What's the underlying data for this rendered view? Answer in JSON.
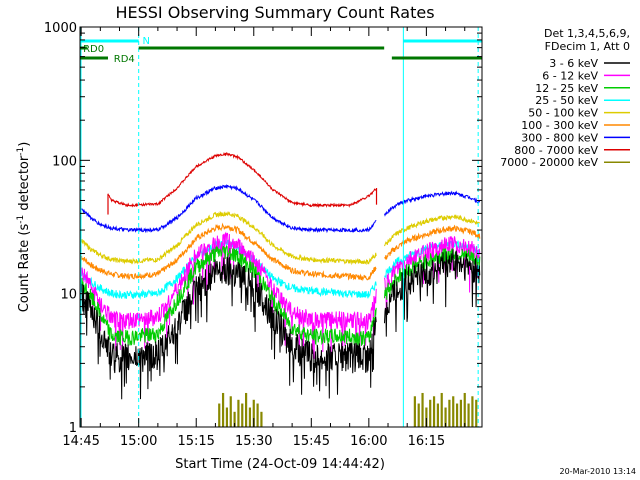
{
  "chart_data": {
    "type": "line",
    "title": "HESSI Observing Summary Count Rates",
    "xlabel": "Start Time (24-Oct-09 14:44:42)",
    "ylabel": "Count Rate (s",
    "ylabel_sup1": "-1",
    "ylabel_mid": " detector",
    "ylabel_sup2": "-1",
    "ylabel_end": ")",
    "y_scale": "log",
    "ylim": [
      1,
      1000
    ],
    "xlim_minutes": [
      -0.3,
      104.5
    ],
    "x_ticks": [
      {
        "t": 0,
        "label": "14:45"
      },
      {
        "t": 15,
        "label": "15:00"
      },
      {
        "t": 30,
        "label": "15:15"
      },
      {
        "t": 45,
        "label": "15:30"
      },
      {
        "t": 60,
        "label": "15:45"
      },
      {
        "t": 75,
        "label": "16:00"
      },
      {
        "t": 90,
        "label": "16:15"
      }
    ],
    "y_ticks": [
      {
        "v": 1,
        "label": "1"
      },
      {
        "v": 10,
        "label": "10"
      },
      {
        "v": 100,
        "label": "100"
      },
      {
        "v": 1000,
        "label": "1000"
      }
    ],
    "legend_header": [
      "Det 1,3,4,5,6,9,",
      "FDecim 1, Att 0"
    ],
    "legend_placement": "right",
    "series": [
      {
        "name": "3 - 6 keV",
        "color": "#000000",
        "values": [
          [
            0,
            10
          ],
          [
            3,
            7.5
          ],
          [
            5,
            5.5
          ],
          [
            8,
            3.5
          ],
          [
            12,
            3.4
          ],
          [
            20,
            3.6
          ],
          [
            25,
            6
          ],
          [
            30,
            11
          ],
          [
            35,
            15
          ],
          [
            38,
            16
          ],
          [
            41,
            15
          ],
          [
            46,
            11
          ],
          [
            50,
            7
          ],
          [
            55,
            4.2
          ],
          [
            60,
            3.5
          ],
          [
            70,
            3.5
          ],
          [
            75,
            3.4
          ],
          [
            77,
            6.5
          ],
          [
            82,
            11
          ],
          [
            85,
            13
          ],
          [
            90,
            15
          ],
          [
            94,
            16.5
          ],
          [
            97,
            17.5
          ],
          [
            102,
            16
          ],
          [
            104,
            14
          ]
        ]
      },
      {
        "name": "6 - 12 keV",
        "color": "#ff00ff",
        "values": [
          [
            0,
            15
          ],
          [
            3,
            11
          ],
          [
            5,
            8.5
          ],
          [
            8,
            6.5
          ],
          [
            12,
            6.4
          ],
          [
            20,
            6.8
          ],
          [
            25,
            11
          ],
          [
            30,
            20
          ],
          [
            35,
            24
          ],
          [
            38,
            26
          ],
          [
            41,
            23
          ],
          [
            46,
            17
          ],
          [
            50,
            11
          ],
          [
            55,
            7.5
          ],
          [
            60,
            6.5
          ],
          [
            70,
            6.5
          ],
          [
            75,
            6.3
          ],
          [
            77,
            10
          ],
          [
            82,
            15
          ],
          [
            85,
            18
          ],
          [
            90,
            21
          ],
          [
            94,
            23
          ],
          [
            97,
            24
          ],
          [
            102,
            22
          ],
          [
            104,
            20
          ]
        ]
      },
      {
        "name": "12 - 25 keV",
        "color": "#00cc00",
        "values": [
          [
            0,
            12
          ],
          [
            3,
            9
          ],
          [
            5,
            7
          ],
          [
            8,
            4.8
          ],
          [
            12,
            4.7
          ],
          [
            20,
            5
          ],
          [
            25,
            9
          ],
          [
            30,
            16
          ],
          [
            35,
            20
          ],
          [
            38,
            21
          ],
          [
            41,
            19
          ],
          [
            46,
            14
          ],
          [
            50,
            9
          ],
          [
            55,
            5.6
          ],
          [
            60,
            4.8
          ],
          [
            70,
            4.8
          ],
          [
            75,
            4.6
          ],
          [
            77,
            8
          ],
          [
            82,
            13
          ],
          [
            85,
            15
          ],
          [
            90,
            17.5
          ],
          [
            94,
            19
          ],
          [
            97,
            20
          ],
          [
            102,
            18.5
          ],
          [
            104,
            17
          ]
        ]
      },
      {
        "name": "25 - 50 keV",
        "color": "#00ffff",
        "values": [
          [
            0,
            14
          ],
          [
            3,
            12
          ],
          [
            5,
            11
          ],
          [
            8,
            10
          ],
          [
            12,
            9.8
          ],
          [
            20,
            10
          ],
          [
            25,
            13
          ],
          [
            30,
            19
          ],
          [
            35,
            23
          ],
          [
            38,
            24
          ],
          [
            41,
            22
          ],
          [
            46,
            17
          ],
          [
            50,
            13
          ],
          [
            55,
            11
          ],
          [
            60,
            10.5
          ],
          [
            70,
            10
          ],
          [
            75,
            9.8
          ],
          [
            77,
            12
          ],
          [
            82,
            17
          ],
          [
            85,
            19
          ],
          [
            90,
            22
          ],
          [
            94,
            23
          ],
          [
            97,
            24
          ],
          [
            102,
            22
          ],
          [
            104,
            20
          ]
        ]
      },
      {
        "name": "50 - 100 keV",
        "color": "#ddcc00",
        "values": [
          [
            0,
            25
          ],
          [
            3,
            21
          ],
          [
            5,
            19.5
          ],
          [
            8,
            18
          ],
          [
            12,
            17.5
          ],
          [
            20,
            18
          ],
          [
            25,
            23
          ],
          [
            30,
            33
          ],
          [
            35,
            39
          ],
          [
            38,
            40
          ],
          [
            41,
            38
          ],
          [
            46,
            30
          ],
          [
            50,
            23
          ],
          [
            55,
            19
          ],
          [
            60,
            18
          ],
          [
            70,
            17.5
          ],
          [
            75,
            17.3
          ],
          [
            77,
            20
          ],
          [
            82,
            28
          ],
          [
            85,
            31
          ],
          [
            90,
            35
          ],
          [
            94,
            37
          ],
          [
            97,
            38
          ],
          [
            102,
            35
          ],
          [
            104,
            33
          ]
        ]
      },
      {
        "name": "100 - 300 keV",
        "color": "#ff8800",
        "values": [
          [
            0,
            19
          ],
          [
            3,
            16
          ],
          [
            5,
            15
          ],
          [
            8,
            14
          ],
          [
            12,
            13.5
          ],
          [
            20,
            14
          ],
          [
            25,
            18
          ],
          [
            30,
            26
          ],
          [
            35,
            31
          ],
          [
            38,
            32
          ],
          [
            41,
            30
          ],
          [
            46,
            23
          ],
          [
            50,
            18
          ],
          [
            55,
            15
          ],
          [
            60,
            14
          ],
          [
            70,
            13.5
          ],
          [
            75,
            13.2
          ],
          [
            77,
            16
          ],
          [
            82,
            22
          ],
          [
            85,
            25
          ],
          [
            90,
            28
          ],
          [
            94,
            30
          ],
          [
            97,
            31
          ],
          [
            102,
            29
          ],
          [
            104,
            27
          ]
        ]
      },
      {
        "name": "300 - 800 keV",
        "color": "#0000ff",
        "values": [
          [
            0,
            44
          ],
          [
            3,
            36
          ],
          [
            5,
            33
          ],
          [
            8,
            31
          ],
          [
            12,
            30
          ],
          [
            20,
            30
          ],
          [
            25,
            37
          ],
          [
            30,
            52
          ],
          [
            35,
            62
          ],
          [
            38,
            64
          ],
          [
            41,
            61
          ],
          [
            46,
            48
          ],
          [
            50,
            37
          ],
          [
            55,
            31
          ],
          [
            60,
            30
          ],
          [
            70,
            30
          ],
          [
            75,
            30
          ],
          [
            77,
            35
          ],
          [
            82,
            46
          ],
          [
            85,
            50
          ],
          [
            90,
            54
          ],
          [
            94,
            56
          ],
          [
            97,
            57
          ],
          [
            102,
            52
          ],
          [
            104,
            48
          ]
        ]
      },
      {
        "name": "800 - 7000 keV",
        "color": "#dd0000",
        "values": [
          [
            7,
            56
          ],
          [
            8,
            50
          ],
          [
            12,
            46
          ],
          [
            20,
            47
          ],
          [
            25,
            62
          ],
          [
            30,
            90
          ],
          [
            35,
            108
          ],
          [
            38,
            112
          ],
          [
            41,
            105
          ],
          [
            46,
            80
          ],
          [
            50,
            60
          ],
          [
            55,
            48
          ],
          [
            60,
            46
          ],
          [
            70,
            46
          ],
          [
            75,
            54
          ],
          [
            77,
            62
          ]
        ]
      },
      {
        "name": "7000 - 20000 keV",
        "color": "#888800",
        "values": [
          [
            36,
            1.5
          ],
          [
            37,
            1.8
          ],
          [
            38,
            1.4
          ],
          [
            39,
            1.7
          ],
          [
            40,
            1.3
          ],
          [
            41,
            1.6
          ],
          [
            42,
            1.5
          ],
          [
            43,
            1.8
          ],
          [
            44,
            1.4
          ],
          [
            45,
            1.6
          ],
          [
            46,
            1.5
          ],
          [
            47,
            1.3
          ],
          [
            87,
            1.7
          ],
          [
            88,
            1.5
          ],
          [
            89,
            1.8
          ],
          [
            90,
            1.4
          ],
          [
            91,
            1.6
          ],
          [
            92,
            1.7
          ],
          [
            93,
            1.5
          ],
          [
            94,
            1.8
          ],
          [
            95,
            1.4
          ],
          [
            96,
            1.6
          ],
          [
            97,
            1.7
          ],
          [
            98,
            1.5
          ],
          [
            99,
            1.6
          ],
          [
            100,
            1.8
          ],
          [
            101,
            1.5
          ],
          [
            102,
            1.7
          ],
          [
            103,
            1.6
          ]
        ]
      }
    ],
    "attenuator_gap_minutes": [
      77,
      79
    ],
    "annotations": {
      "night_label": "N",
      "night_periods": [
        [
          -0.3,
          15
        ],
        [
          84,
          104.5
        ]
      ],
      "rd0_label": "RD0",
      "rd0_periods": [
        [
          -0.3,
          1.5
        ],
        [
          15,
          79
        ]
      ],
      "rd4_label": "RD4",
      "rd4_periods": [
        [
          -0.3,
          7
        ],
        [
          81,
          104.5
        ]
      ],
      "markers_minutes": [
        15,
        84,
        103.5
      ],
      "night_color": "#00ffff",
      "rd_color": "#007700"
    },
    "timestamp": "20-Mar-2010 13:14"
  }
}
